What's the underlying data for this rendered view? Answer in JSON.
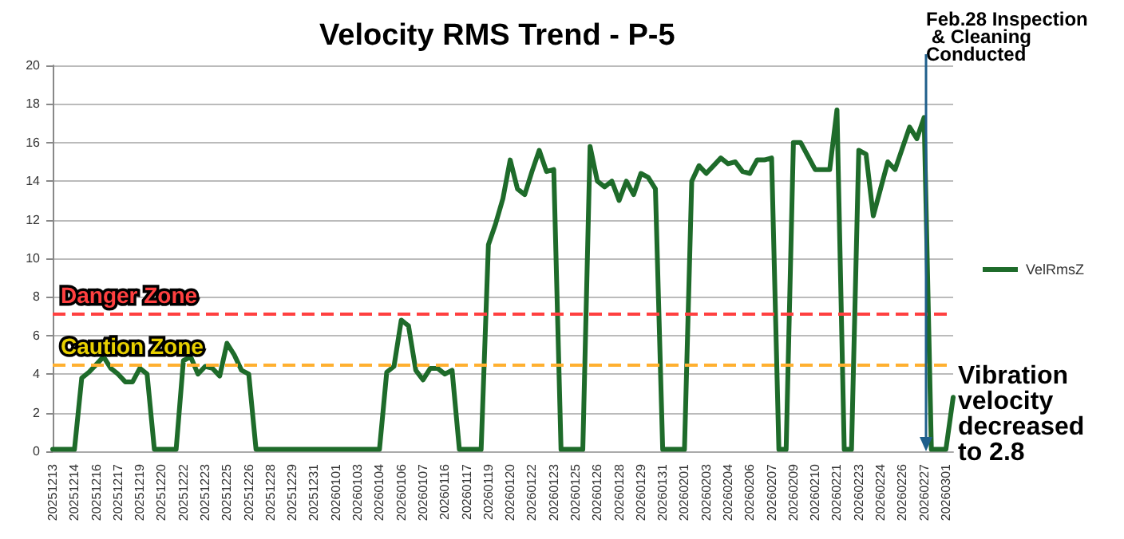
{
  "chart_data": {
    "type": "line",
    "title": "Velocity RMS Trend - P-5",
    "categories": [
      "20251213",
      null,
      null,
      "20251214",
      null,
      null,
      "20251216",
      null,
      null,
      "20251217",
      null,
      null,
      "20251219",
      null,
      null,
      "20251220",
      null,
      null,
      "20251222",
      null,
      null,
      "20251223",
      null,
      null,
      "20251225",
      null,
      null,
      "20251226",
      null,
      null,
      "20251228",
      null,
      null,
      "20251229",
      null,
      null,
      "20251231",
      null,
      null,
      "20260101",
      null,
      null,
      "20260103",
      null,
      null,
      "20260104",
      null,
      null,
      "20260106",
      null,
      null,
      "20260107",
      null,
      null,
      "20260116",
      null,
      null,
      "20260117",
      null,
      null,
      "20260119",
      null,
      null,
      "20260120",
      null,
      null,
      "20260122",
      null,
      null,
      "20260123",
      null,
      null,
      "20260125",
      null,
      null,
      "20260126",
      null,
      null,
      "20260128",
      null,
      null,
      "20260129",
      null,
      null,
      "20260131",
      null,
      null,
      "20260201",
      null,
      null,
      "20260203",
      null,
      null,
      "20260204",
      null,
      null,
      "20260206",
      null,
      null,
      "20260207",
      null,
      null,
      "20260209",
      null,
      null,
      "20260210",
      null,
      null,
      "20260221",
      null,
      null,
      "20260223",
      null,
      null,
      "20260224",
      null,
      null,
      "20260226",
      null,
      null,
      "20260227",
      null,
      null,
      "20260301",
      null
    ],
    "series": [
      {
        "name": "VelRmsZ",
        "color": "#1e6b2a",
        "values": [
          0.1,
          0.1,
          0.1,
          0.1,
          3.8,
          4.1,
          4.5,
          4.9,
          4.3,
          4.0,
          3.6,
          3.6,
          4.3,
          4.0,
          0.1,
          0.1,
          0.1,
          0.1,
          4.7,
          4.9,
          4.0,
          4.4,
          4.3,
          3.9,
          5.6,
          5.0,
          4.2,
          4.0,
          0.1,
          0.1,
          0.1,
          0.1,
          0.1,
          0.1,
          0.1,
          0.1,
          0.1,
          0.1,
          0.1,
          0.1,
          0.1,
          0.1,
          0.1,
          0.1,
          0.1,
          0.1,
          4.1,
          4.4,
          6.8,
          6.5,
          4.2,
          3.7,
          4.3,
          4.3,
          4.0,
          4.2,
          0.1,
          0.1,
          0.1,
          0.1,
          10.7,
          11.8,
          13.1,
          15.1,
          13.6,
          13.3,
          14.5,
          15.6,
          14.5,
          14.6,
          0.1,
          0.1,
          0.1,
          0.1,
          15.8,
          14.0,
          13.7,
          14.0,
          13.0,
          14.0,
          13.3,
          14.4,
          14.2,
          13.6,
          0.1,
          0.1,
          0.1,
          0.1,
          14.0,
          14.8,
          14.4,
          14.8,
          15.2,
          14.9,
          15.0,
          14.5,
          14.4,
          15.1,
          15.1,
          15.2,
          0.1,
          0.1,
          16.0,
          16.0,
          15.3,
          14.6,
          14.6,
          14.6,
          17.7,
          0.1,
          0.1,
          15.6,
          15.4,
          12.2,
          13.6,
          15.0,
          14.6,
          15.7,
          16.8,
          16.2,
          17.3,
          0.1,
          0.1,
          0.1,
          2.8
        ]
      }
    ],
    "ylim": [
      0,
      20
    ],
    "yticks": [
      0,
      2,
      4,
      6,
      8,
      10,
      12,
      14,
      16,
      18,
      20
    ],
    "grid": "y",
    "legend": "right",
    "marker": "none",
    "line_style": "solid",
    "ref_lines": [
      {
        "axis": "y",
        "value": 7.1,
        "label": "Danger Zone",
        "color": "#ff4040",
        "line_style": "dashed"
      },
      {
        "axis": "y",
        "value": 4.45,
        "label": "Caution Zone",
        "color": "#ffb030",
        "line_style": "dashed"
      }
    ],
    "annotations": [
      "Feb.28 Inspection & Cleaning Conducted",
      "Vibration velocity decreased to 2.8"
    ]
  }
}
